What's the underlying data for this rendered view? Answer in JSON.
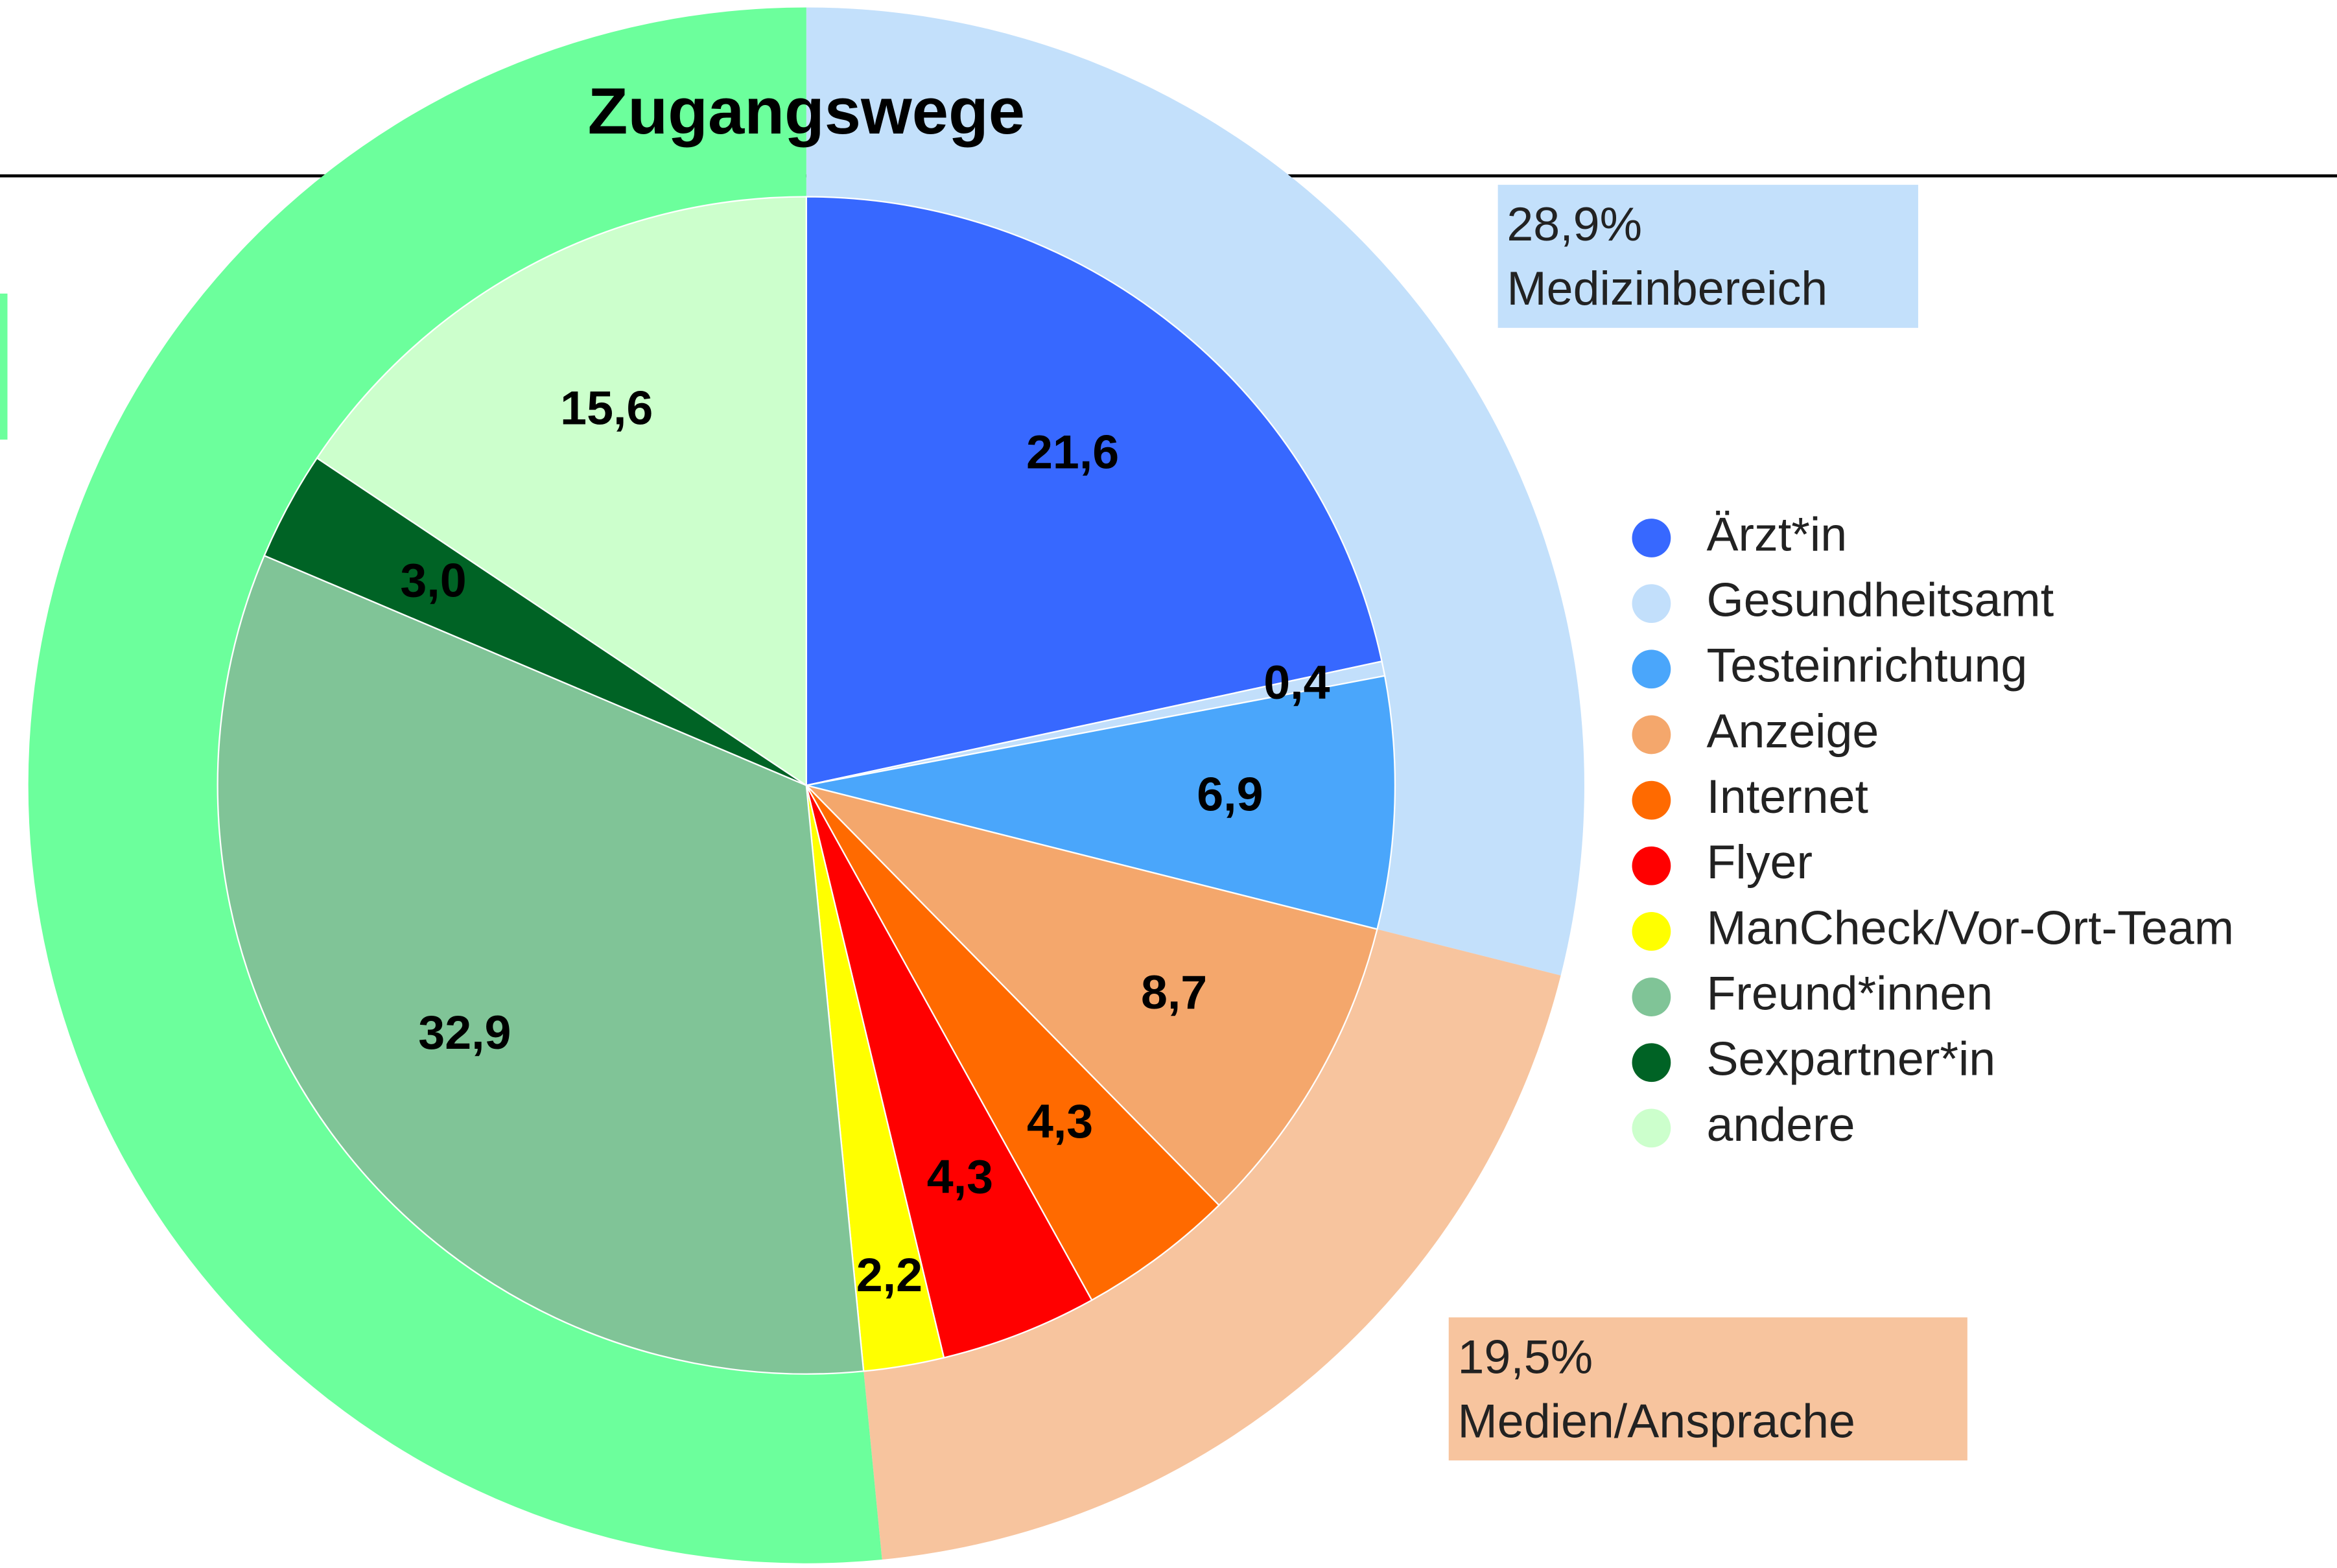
{
  "chart_data": {
    "type": "pie",
    "title": "Zugangswege",
    "categories": [
      "Ärzt*in",
      "Gesundheitsamt",
      "Testeinrichtung",
      "Anzeige",
      "Internet",
      "Flyer",
      "ManCheck/Vor-Ort-Team",
      "Freund*innen",
      "Sexpartner*in",
      "andere"
    ],
    "values": [
      21.6,
      0.4,
      6.9,
      8.7,
      4.3,
      4.3,
      2.2,
      32.9,
      3.0,
      15.6
    ],
    "value_labels": [
      "21,6",
      "0,4",
      "6,9",
      "8,7",
      "4,3",
      "4,3",
      "2,2",
      "32,9",
      "3,0",
      "15,6"
    ],
    "colors": [
      "#3768ff",
      "#c2dffb",
      "#4aa6fb",
      "#f4a76c",
      "#ff6a00",
      "#ff0000",
      "#ffff00",
      "#80c497",
      "#006325",
      "#ccffcc"
    ],
    "outer": {
      "categories": [
        "Medizinbereich",
        "Medien/Ansprache",
        null
      ],
      "values": [
        28.9,
        19.5,
        51.5
      ],
      "value_labels": [
        "28,9%",
        "19,5%",
        null
      ],
      "colors": [
        "#c3e0fb",
        "#f7c49e",
        "#6cff9c"
      ]
    },
    "legend": "right"
  }
}
